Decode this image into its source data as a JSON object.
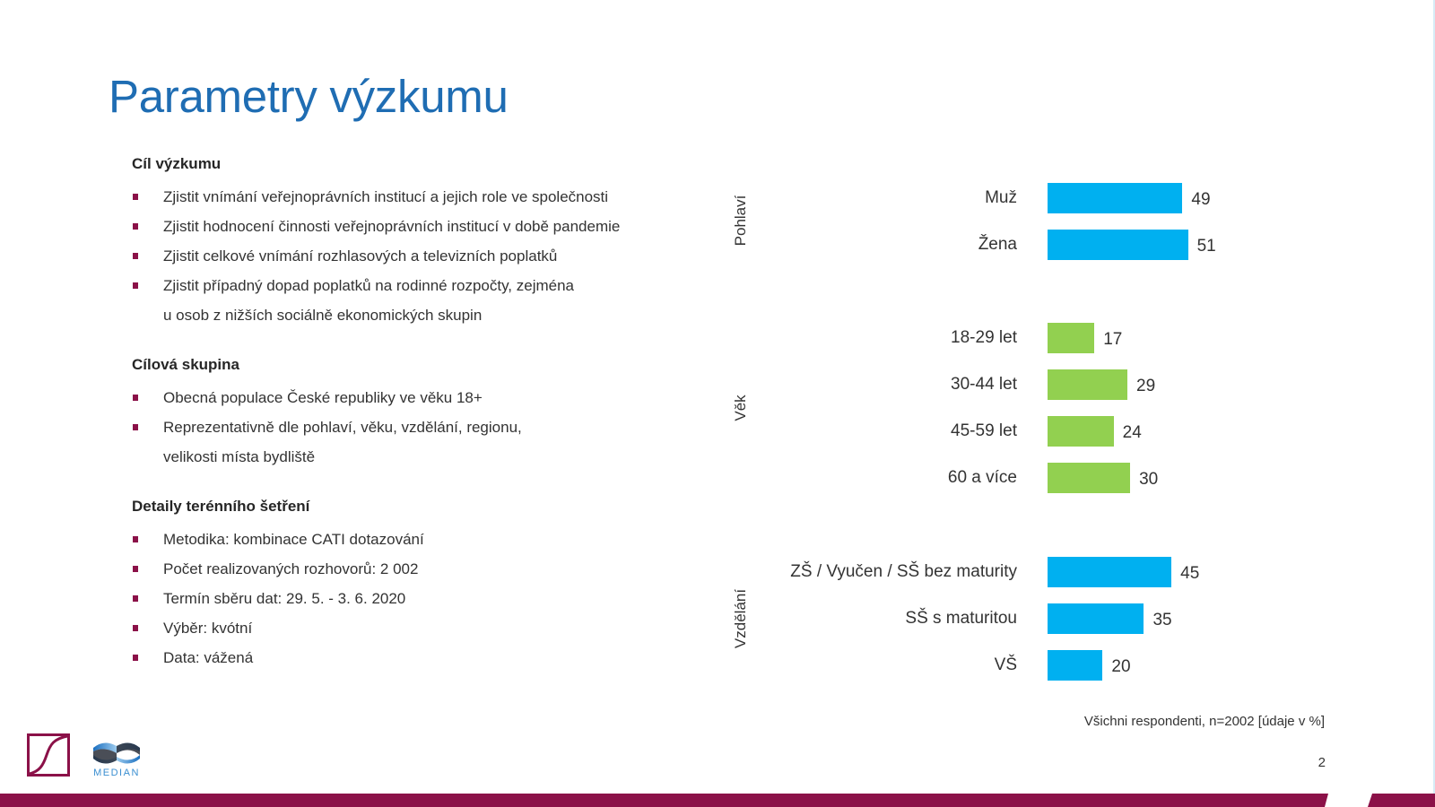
{
  "slide": {
    "title": "Parametry výzkumu",
    "page_number": "2",
    "footnote": "Všichni respondenti, n=2002 [údaje v %]",
    "colors": {
      "title": "#1f6db3",
      "accent_maroon": "#8b1148",
      "bar_blue": "#00b0f0",
      "bar_green": "#92d050"
    },
    "logos": {
      "median_text": "MEDIAN"
    }
  },
  "sections": [
    {
      "heading": "Cíl výzkumu",
      "bullets": [
        "Zjistit vnímání veřejnoprávních institucí a jejich role ve společnosti",
        "Zjistit hodnocení činnosti veřejnoprávních institucí v době pandemie",
        "Zjistit celkové vnímání rozhlasových a televizních poplatků",
        "Zjistit případný dopad poplatků na rodinné rozpočty, zejména",
        "u osob z nižších sociálně ekonomických skupin"
      ]
    },
    {
      "heading": "Cílová skupina",
      "bullets": [
        "Obecná populace České republiky ve věku 18+",
        "Reprezentativně dle pohlaví, věku, vzdělání, regionu,",
        "velikosti místa bydliště"
      ]
    },
    {
      "heading": "Detaily terénního šetření",
      "bullets": [
        "Metodika: kombinace CATI dotazování",
        "Počet realizovaných rozhovorů: 2 002",
        "Termín sběru dat: 29. 5. - 3. 6. 2020",
        "Výběr: kvótní",
        "Data: vážená"
      ]
    }
  ],
  "chart_data": {
    "type": "bar",
    "orientation": "horizontal",
    "title": "",
    "xlabel": "",
    "ylabel": "",
    "unit": "%",
    "note": "Všichni respondenti, n=2002 [údaje v %]",
    "grid": false,
    "legend": null,
    "xlim": [
      0,
      100
    ],
    "groups": [
      {
        "name": "Pohlaví",
        "color": "#00b0f0",
        "categories": [
          "Muž",
          "Žena"
        ],
        "values": [
          49,
          51
        ]
      },
      {
        "name": "Věk",
        "color": "#92d050",
        "categories": [
          "18-29 let",
          "30-44 let",
          "45-59 let",
          "60 a více"
        ],
        "values": [
          17,
          29,
          24,
          30
        ]
      },
      {
        "name": "Vzdělání",
        "color": "#00b0f0",
        "categories": [
          "ZŠ / Vyučen / SŠ bez maturity",
          "SŠ s maturitou",
          "VŠ"
        ],
        "values": [
          45,
          35,
          20
        ]
      }
    ]
  }
}
